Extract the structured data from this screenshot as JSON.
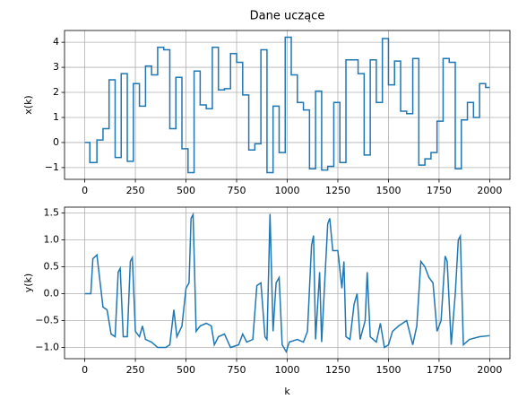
{
  "chart_data": [
    {
      "type": "line",
      "title": "Dane uczące",
      "ylabel": "x(k)",
      "drawstyle": "steps-post",
      "grid": true,
      "x": [
        0,
        25,
        60,
        90,
        120,
        150,
        180,
        210,
        240,
        270,
        300,
        330,
        360,
        390,
        420,
        450,
        480,
        510,
        540,
        570,
        600,
        630,
        660,
        690,
        720,
        750,
        780,
        810,
        840,
        870,
        900,
        930,
        960,
        990,
        1020,
        1050,
        1080,
        1110,
        1140,
        1170,
        1200,
        1230,
        1260,
        1290,
        1350,
        1380,
        1410,
        1440,
        1470,
        1500,
        1530,
        1560,
        1590,
        1620,
        1650,
        1680,
        1710,
        1740,
        1770,
        1800,
        1830,
        1860,
        1890,
        1920,
        1950,
        1980,
        2000
      ],
      "series": [
        {
          "color": "#1f77b4",
          "values": [
            0,
            -0.8,
            0.1,
            0.55,
            2.5,
            -0.6,
            2.75,
            -0.75,
            2.35,
            1.45,
            3.05,
            2.7,
            3.8,
            3.7,
            0.55,
            2.6,
            -0.25,
            -1.2,
            2.85,
            1.5,
            1.35,
            3.8,
            2.1,
            2.15,
            3.55,
            3.2,
            1.9,
            -0.3,
            -0.05,
            3.7,
            -1.2,
            1.45,
            -0.4,
            4.2,
            2.7,
            1.6,
            1.3,
            -1.05,
            2.05,
            -1.1,
            -0.95,
            1.6,
            -0.8,
            3.3,
            2.75,
            -0.5,
            3.3,
            1.6,
            4.15,
            2.3,
            3.25,
            1.25,
            1.15,
            3.35,
            -0.9,
            -0.65,
            -0.4,
            0.85,
            3.35,
            3.2,
            -1.05,
            0.9,
            1.6,
            1.0,
            2.35,
            2.2,
            2.2
          ]
        }
      ],
      "xlim": [
        -100,
        2100
      ],
      "xticks": [
        0,
        250,
        500,
        750,
        1000,
        1250,
        1500,
        1750,
        2000
      ],
      "ylim": [
        -1.47,
        4.47
      ],
      "yticks": [
        {
          "value": -1,
          "label": "−1"
        },
        0,
        1,
        2,
        3,
        4
      ]
    },
    {
      "type": "line",
      "ylabel": "y(k)",
      "xlabel": "k",
      "grid": true,
      "x": [
        0,
        30,
        40,
        60,
        90,
        110,
        130,
        150,
        165,
        175,
        190,
        210,
        225,
        235,
        250,
        270,
        285,
        300,
        330,
        360,
        400,
        420,
        440,
        455,
        480,
        500,
        515,
        525,
        535,
        550,
        570,
        600,
        625,
        640,
        660,
        690,
        720,
        760,
        780,
        800,
        830,
        850,
        870,
        890,
        900,
        915,
        930,
        945,
        960,
        975,
        995,
        1010,
        1050,
        1080,
        1100,
        1120,
        1130,
        1140,
        1160,
        1170,
        1200,
        1210,
        1225,
        1250,
        1270,
        1280,
        1290,
        1310,
        1330,
        1345,
        1360,
        1385,
        1395,
        1410,
        1440,
        1460,
        1480,
        1500,
        1520,
        1550,
        1590,
        1620,
        1640,
        1660,
        1680,
        1700,
        1720,
        1740,
        1760,
        1780,
        1790,
        1810,
        1830,
        1845,
        1855,
        1870,
        1900,
        1950,
        2000
      ],
      "series": [
        {
          "color": "#1f77b4",
          "values": [
            0,
            0,
            0.65,
            0.72,
            -0.25,
            -0.3,
            -0.75,
            -0.8,
            0.4,
            0.47,
            -0.8,
            -0.8,
            0.6,
            0.67,
            -0.7,
            -0.8,
            -0.6,
            -0.85,
            -0.9,
            -1.0,
            -1.0,
            -0.95,
            -0.3,
            -0.8,
            -0.6,
            0.1,
            0.2,
            1.4,
            1.47,
            -0.7,
            -0.6,
            -0.55,
            -0.6,
            -0.95,
            -0.8,
            -0.75,
            -1.0,
            -0.95,
            -0.75,
            -0.9,
            -0.85,
            0.15,
            0.2,
            -0.8,
            -0.85,
            1.48,
            -0.7,
            0.2,
            0.3,
            -0.95,
            -1.08,
            -0.9,
            -0.85,
            -0.9,
            -0.7,
            0.9,
            1.08,
            -0.85,
            0.4,
            -0.9,
            1.3,
            1.4,
            0.8,
            0.8,
            0.1,
            0.6,
            -0.8,
            -0.85,
            -0.2,
            0.0,
            -0.85,
            -0.5,
            0.4,
            -0.8,
            -0.9,
            -0.55,
            -1.0,
            -0.95,
            -0.7,
            -0.6,
            -0.5,
            -0.95,
            -0.6,
            0.6,
            0.5,
            0.3,
            0.2,
            -0.7,
            -0.5,
            0.7,
            0.6,
            -0.95,
            0.0,
            1.0,
            1.07,
            -0.95,
            -0.85,
            -0.8,
            -0.78
          ]
        }
      ],
      "xlim": [
        -100,
        2100
      ],
      "xticks": [
        0,
        250,
        500,
        750,
        1000,
        1250,
        1500,
        1750,
        2000
      ],
      "ylim": [
        -1.208,
        1.608
      ],
      "yticks": [
        {
          "value": -1,
          "label": "−1.0"
        },
        {
          "value": -0.5,
          "label": "−0.5"
        },
        {
          "value": 0,
          "label": "0.0"
        },
        0.5,
        {
          "value": 1,
          "label": "1.0"
        },
        1.5
      ]
    }
  ]
}
